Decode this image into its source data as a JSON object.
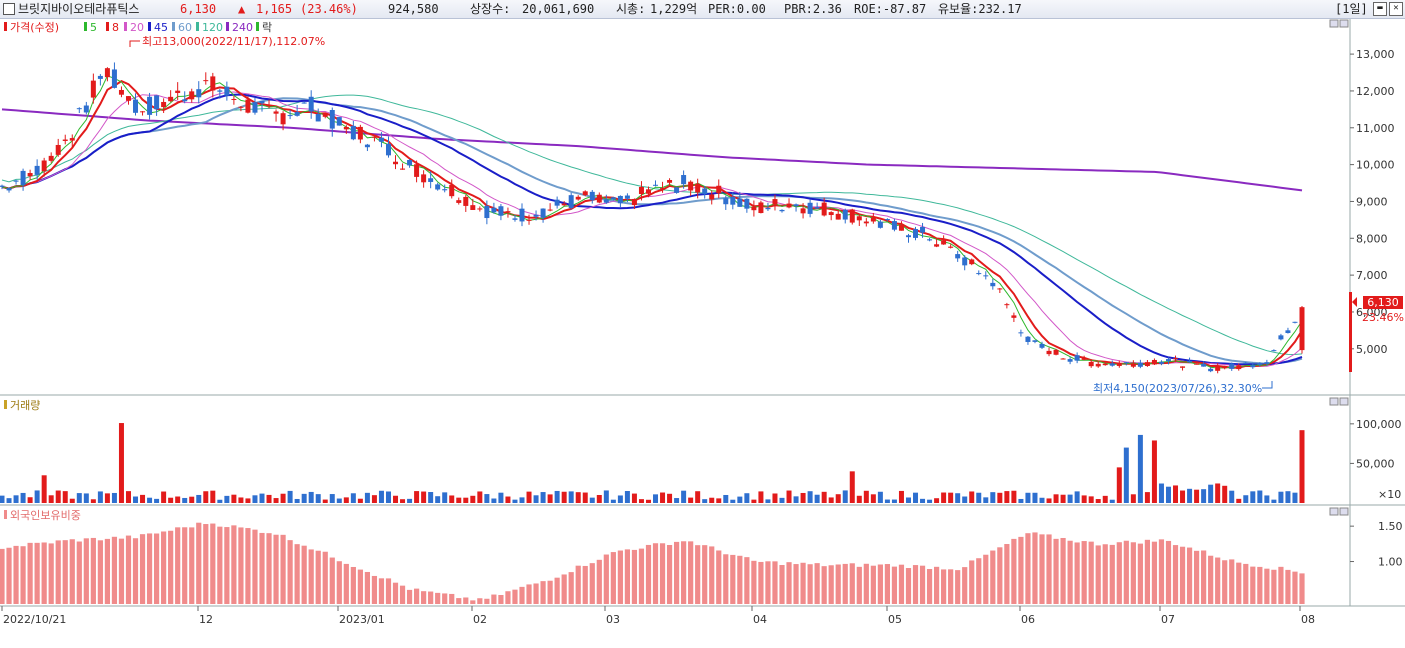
{
  "header": {
    "name": "브릿지바이오테라퓨틱스",
    "price": "6,130",
    "change_arrow": "▲",
    "change": "1,165",
    "change_pct": "(23.46%)",
    "volume": "924,580",
    "listed_label": "상장수:",
    "listed": "20,061,690",
    "mcap_label": "시총:",
    "mcap": "1,229억",
    "per": "PER:0.00",
    "pbr": "PBR:2.36",
    "roe": "ROE:-87.87",
    "float": "유보율:232.17",
    "period": "[1일]"
  },
  "legend": {
    "price": "가격(수정)",
    "ma": [
      "5",
      "8",
      "20",
      "45",
      "60",
      "120",
      "240"
    ],
    "fall": "락",
    "volume": "거래량",
    "foreign": "외국인보유비중"
  },
  "annotations": {
    "high": "최고13,000(2022/11/17),112.07%",
    "low": "최저4,150(2023/07/26),32.30%",
    "last_price": "6,130",
    "last_pct": "23.46%",
    "vol_unit": "×10"
  },
  "colors": {
    "up": "#e21b1b",
    "down": "#2e6fcf",
    "ma5": "#2db82d",
    "ma8": "#e21b1b",
    "ma20": "#d257c8",
    "ma45": "#1a1ec8",
    "ma60": "#6f9ccc",
    "ma120": "#3fb89a",
    "ma240": "#8a2ac0",
    "foreign": "#f08b8b"
  },
  "chart_data": [
    {
      "type": "candlestick",
      "title": "가격(수정)",
      "x": [
        "2022/10/21",
        "12",
        "2023/01",
        "02",
        "03",
        "04",
        "05",
        "06",
        "07",
        "08"
      ],
      "ylim": [
        3800,
        13600
      ],
      "yticks": [
        "5,000",
        "6,000",
        "7,000",
        "8,000",
        "9,000",
        "10,000",
        "11,000",
        "12,000",
        "13,000"
      ],
      "close_approx": [
        9400,
        9800,
        10800,
        12600,
        11500,
        11800,
        12200,
        11700,
        11300,
        11600,
        11000,
        10600,
        9900,
        9400,
        8800,
        8600,
        8800,
        9100,
        8900,
        9300,
        9500,
        9200,
        8800,
        8950,
        8800,
        8600,
        8300,
        8100,
        7500,
        6800,
        5200,
        4800,
        4600,
        4600,
        4700,
        4500,
        4500,
        4700,
        6130
      ],
      "ma240_approx": [
        11500,
        11200,
        11000,
        10700,
        10500,
        10200,
        10000,
        9900,
        9800,
        9300
      ],
      "high": {
        "value": 13000,
        "date": "2022/11/17",
        "pct": 112.07
      },
      "low": {
        "value": 4150,
        "date": "2023/07/26",
        "pct": 32.3
      },
      "last": 6130
    },
    {
      "type": "bar",
      "title": "거래량",
      "ylim": [
        0,
        120000
      ],
      "yticks": [
        "50,000",
        "100,000"
      ],
      "unit": "×10",
      "peaks": {
        "2022/11": 101000,
        "2023/06": 86000,
        "2023/08": 92000
      }
    },
    {
      "type": "bar",
      "title": "외국인보유비중",
      "ylim": [
        0.4,
        1.7
      ],
      "yticks": [
        "1.00",
        "1.50"
      ],
      "values_approx": [
        1.2,
        1.3,
        1.35,
        1.55,
        1.4,
        1.0,
        0.6,
        0.45,
        0.75,
        1.15,
        1.3,
        1.0,
        0.95,
        0.95,
        0.9,
        1.4,
        1.25,
        1.3,
        1.0,
        0.85
      ]
    }
  ]
}
